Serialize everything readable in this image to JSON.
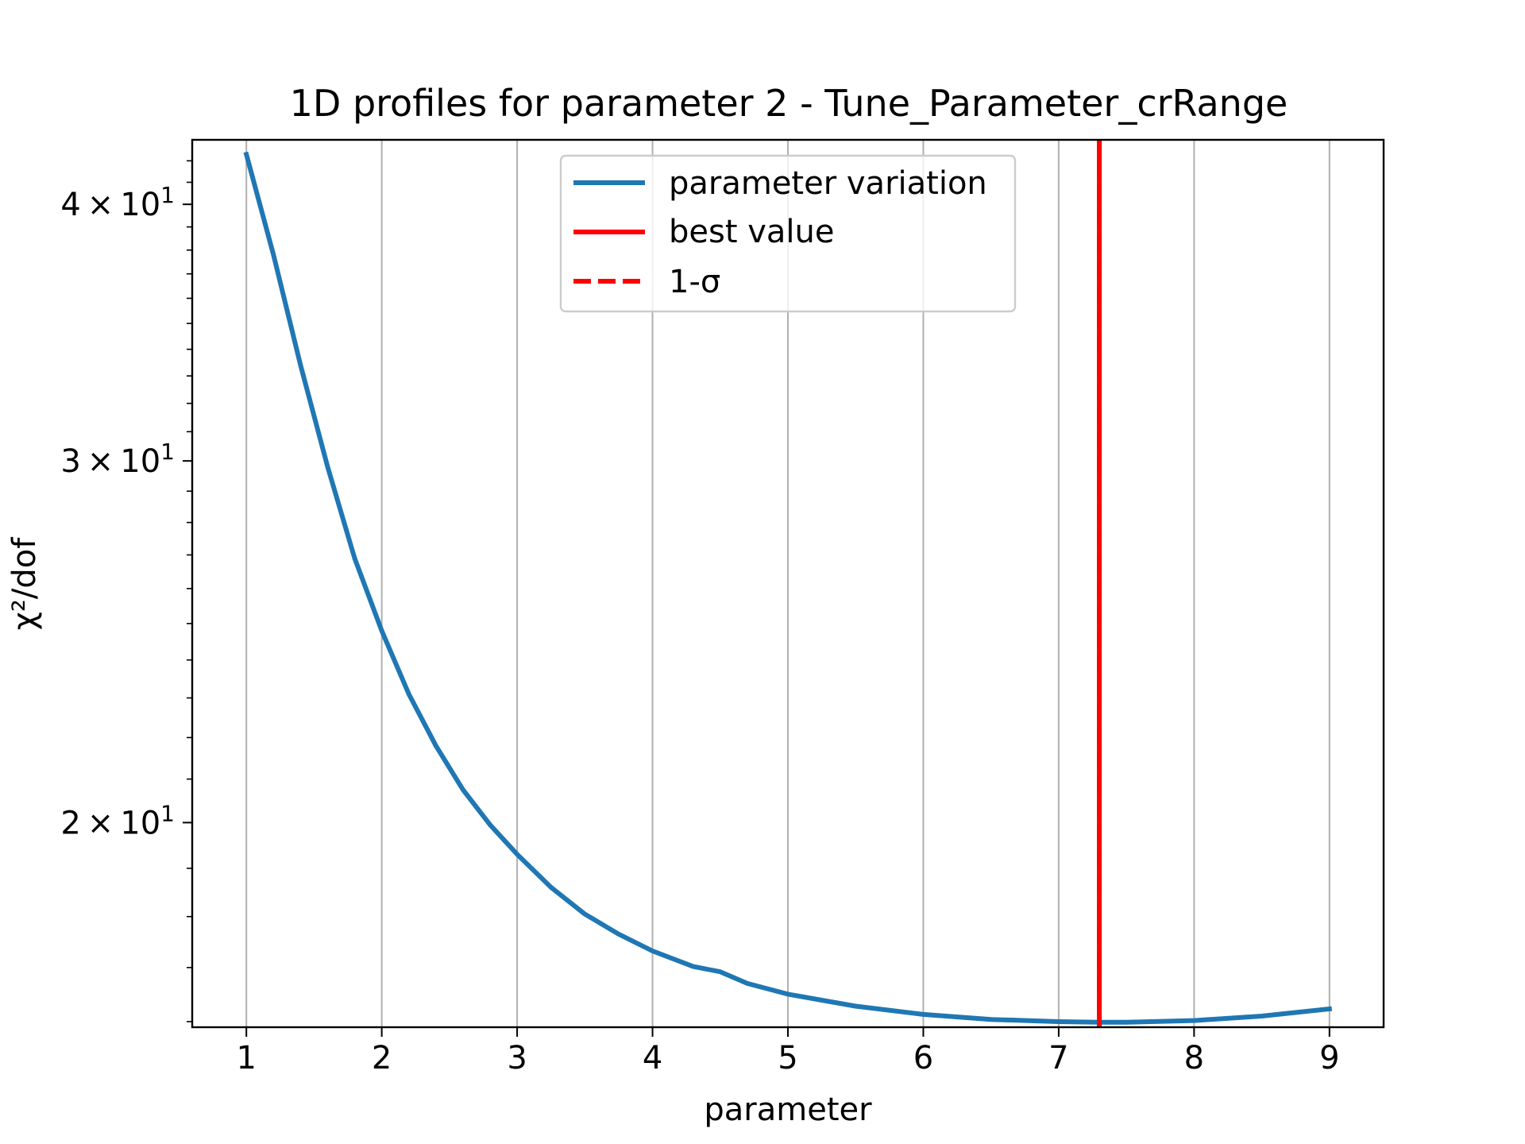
{
  "chart_data": {
    "type": "line",
    "title": "1D profiles for parameter 2 - Tune_Parameter_crRange",
    "xlabel": "parameter",
    "ylabel": "χ²/dof",
    "yscale": "log",
    "xlim": [
      0.6,
      9.4
    ],
    "ylim": [
      15.9,
      43.0
    ],
    "grid": "x-major",
    "legend_position": "upper center",
    "x_ticks": [
      {
        "value": 1,
        "label": "1"
      },
      {
        "value": 2,
        "label": "2"
      },
      {
        "value": 3,
        "label": "3"
      },
      {
        "value": 4,
        "label": "4"
      },
      {
        "value": 5,
        "label": "5"
      },
      {
        "value": 6,
        "label": "6"
      },
      {
        "value": 7,
        "label": "7"
      },
      {
        "value": 8,
        "label": "8"
      },
      {
        "value": 9,
        "label": "9"
      }
    ],
    "y_ticks": [
      {
        "value": 20,
        "mant": "2",
        "exp": "1"
      },
      {
        "value": 30,
        "mant": "3",
        "exp": "1"
      },
      {
        "value": 40,
        "mant": "4",
        "exp": "1"
      }
    ],
    "series": [
      {
        "name": "parameter variation",
        "color": "#1f77b4",
        "style": "solid",
        "x": [
          1.0,
          1.2,
          1.4,
          1.6,
          1.8,
          2.0,
          2.2,
          2.4,
          2.6,
          2.8,
          3.0,
          3.25,
          3.5,
          3.75,
          4.0,
          4.3,
          4.5,
          4.7,
          5.0,
          5.5,
          6.0,
          6.5,
          7.0,
          7.3,
          7.5,
          8.0,
          8.5,
          9.0
        ],
        "y": [
          42.3,
          37.8,
          33.4,
          29.8,
          26.9,
          24.8,
          23.1,
          21.8,
          20.75,
          19.95,
          19.3,
          18.6,
          18.05,
          17.65,
          17.32,
          17.02,
          16.92,
          16.7,
          16.5,
          16.28,
          16.13,
          16.04,
          16.0,
          15.99,
          15.99,
          16.02,
          16.1,
          16.23
        ]
      },
      {
        "name": "best value",
        "color": "#ff0000",
        "style": "solid",
        "vline_x": 7.3
      },
      {
        "name": "1-σ",
        "color": "#ff0000",
        "style": "dashed",
        "vline_x": 7.3
      }
    ]
  }
}
